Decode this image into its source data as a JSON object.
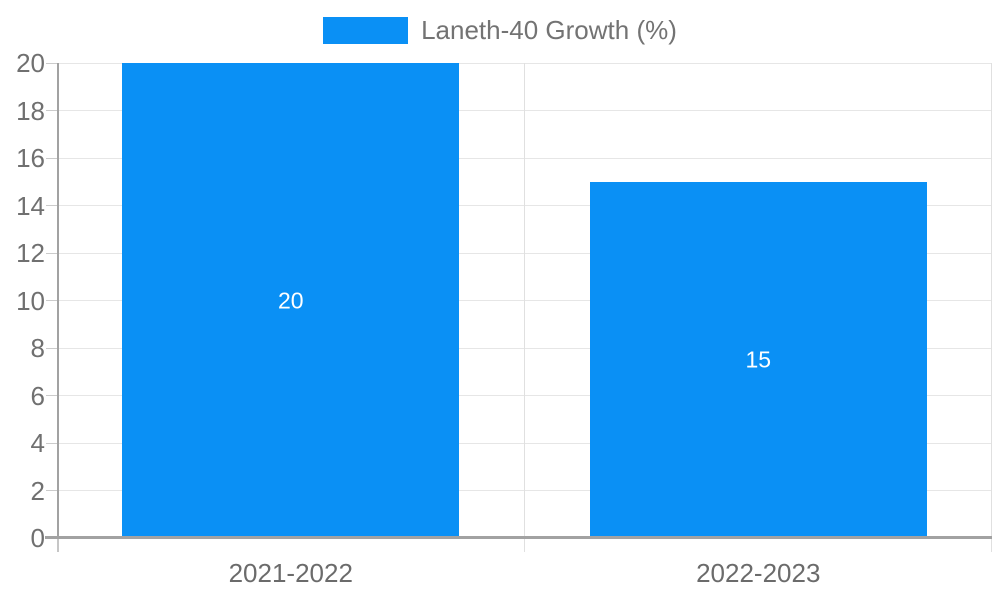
{
  "legend": {
    "label": "Laneth-40 Growth (%)"
  },
  "colors": {
    "bar": "#0a90f5",
    "axis_line": "#a2a2a2",
    "axis_extension": "#c6c6c6",
    "gridline": "#e6e6e6",
    "category_line": "#e0e0e0",
    "tick_mark": "#cbcbcb",
    "y_label": "#707070",
    "x_label": "#6b6b6b",
    "legend_label": "#737373",
    "data_label": "#ffffff",
    "background": "#ffffff"
  },
  "chart_data": {
    "type": "bar",
    "title": "",
    "categories": [
      "2021-2022",
      "2022-2023"
    ],
    "series": [
      {
        "name": "Laneth-40 Growth (%)",
        "values": [
          20,
          15
        ]
      }
    ],
    "data_labels": [
      "20",
      "15"
    ],
    "xlabel": "",
    "ylabel": "",
    "ylim": [
      0,
      20
    ],
    "ytick_step": 2,
    "yticks": [
      0,
      2,
      4,
      6,
      8,
      10,
      12,
      14,
      16,
      18,
      20
    ],
    "grid": true,
    "legend_position": "top"
  }
}
